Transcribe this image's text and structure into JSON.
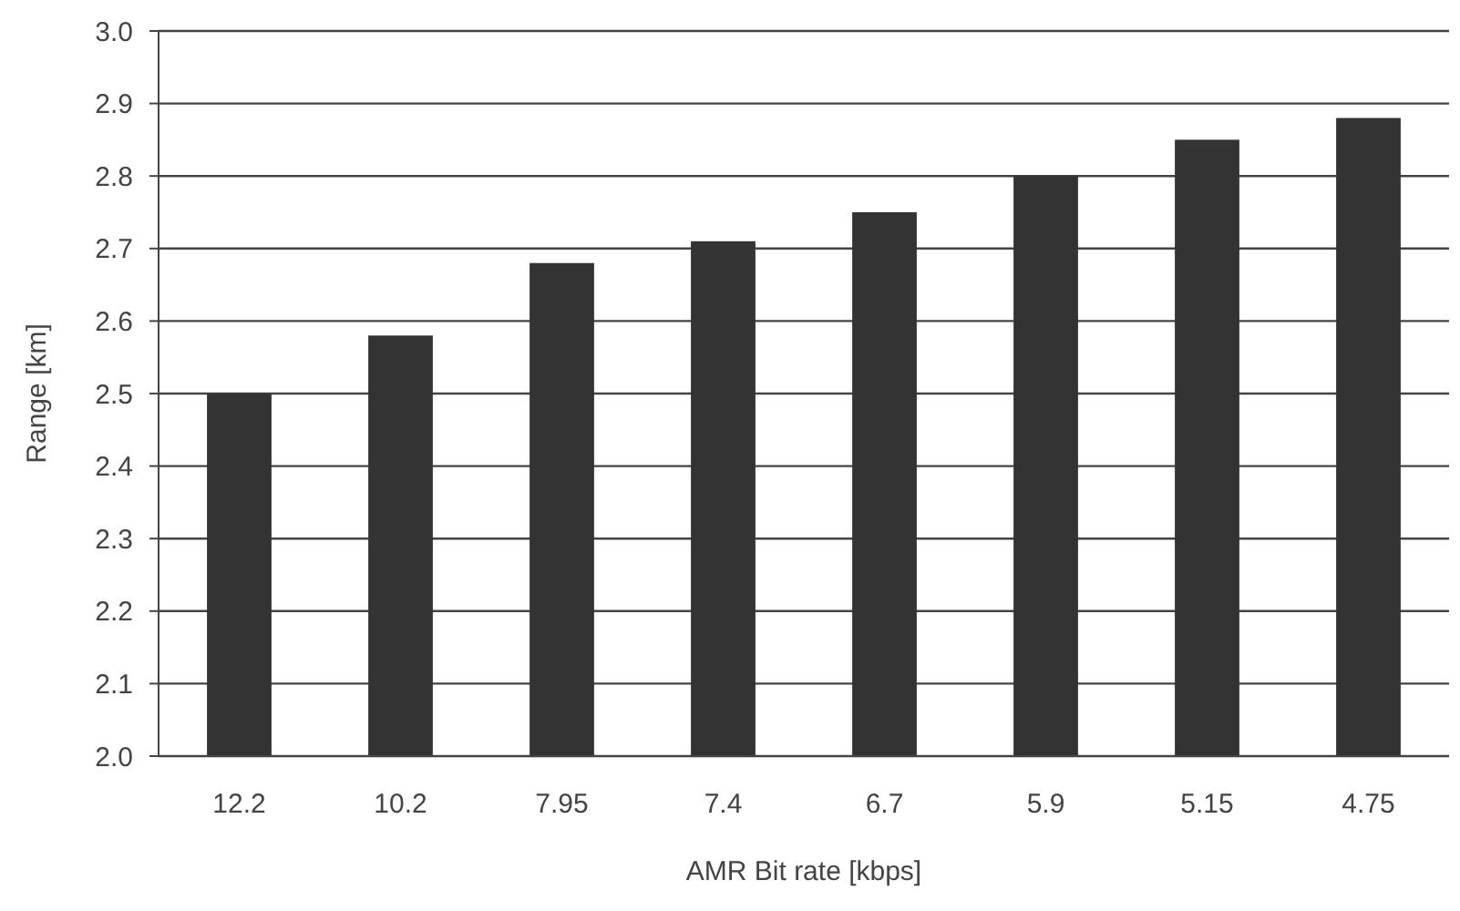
{
  "chart_data": {
    "type": "bar",
    "xlabel": "AMR Bit rate [kbps]",
    "ylabel": "Range [km]",
    "categories": [
      "12.2",
      "10.2",
      "7.95",
      "7.4",
      "6.7",
      "5.9",
      "5.15",
      "4.75"
    ],
    "values": [
      2.5,
      2.58,
      2.68,
      2.71,
      2.75,
      2.8,
      2.85,
      2.88
    ],
    "color": "#333333",
    "ylim": [
      2.0,
      3.0
    ],
    "yticks": [
      {
        "value": 2.0,
        "label": "2.0"
      },
      {
        "value": 2.1,
        "label": "2.1"
      },
      {
        "value": 2.2,
        "label": "2.2"
      },
      {
        "value": 2.3,
        "label": "2.3"
      },
      {
        "value": 2.4,
        "label": "2.4"
      },
      {
        "value": 2.5,
        "label": "2.5"
      },
      {
        "value": 2.6,
        "label": "2.6"
      },
      {
        "value": 2.7,
        "label": "2.7"
      },
      {
        "value": 2.8,
        "label": "2.8"
      },
      {
        "value": 2.9,
        "label": "2.9"
      },
      {
        "value": 3.0,
        "label": "3.0"
      }
    ],
    "grid": "y"
  }
}
